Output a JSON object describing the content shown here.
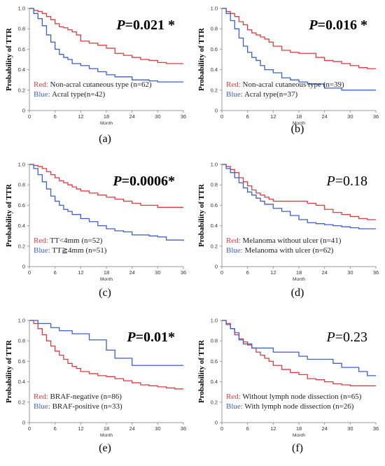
{
  "colors": {
    "red": "#e03a3e",
    "blue": "#3a5fd0"
  },
  "chart_data": [
    {
      "type": "line",
      "panel_label": "(a)",
      "p_prefix": "P",
      "p_value": "=0.021",
      "p_star": " *",
      "p_bold": true,
      "xlabel": "Month",
      "ylabel": "Probability of TTR",
      "xticks": [
        "0",
        "6",
        "12",
        "18",
        "24",
        "30",
        "36"
      ],
      "yticks": [
        "0",
        "0.2",
        "0.4",
        "0.6",
        "0.8",
        "1.0"
      ],
      "xlim": [
        0,
        36
      ],
      "ylim": [
        0,
        1.0
      ],
      "legend": [
        {
          "key": "Red:",
          "text": " Non-acral cutaneous type (n=62)"
        },
        {
          "key": "Blue:",
          "text": " Acral type(n=42)"
        }
      ],
      "series": [
        {
          "color": "red",
          "x": [
            0,
            1,
            2,
            3,
            4,
            5,
            6,
            7,
            8,
            9,
            10,
            11,
            12,
            14,
            16,
            18,
            20,
            22,
            24,
            26,
            28,
            30,
            32,
            34,
            36
          ],
          "y": [
            1,
            0.98,
            0.97,
            0.95,
            0.92,
            0.89,
            0.85,
            0.82,
            0.81,
            0.79,
            0.77,
            0.74,
            0.68,
            0.66,
            0.64,
            0.61,
            0.56,
            0.54,
            0.52,
            0.5,
            0.49,
            0.47,
            0.46,
            0.46,
            0.46
          ]
        },
        {
          "color": "blue",
          "x": [
            0,
            1,
            2,
            3,
            4,
            5,
            6,
            7,
            8,
            9,
            10,
            12,
            14,
            16,
            18,
            20,
            24,
            28,
            30,
            36
          ],
          "y": [
            1,
            0.95,
            0.9,
            0.83,
            0.74,
            0.67,
            0.6,
            0.55,
            0.52,
            0.5,
            0.46,
            0.44,
            0.41,
            0.38,
            0.35,
            0.33,
            0.3,
            0.29,
            0.28,
            0.28
          ]
        }
      ]
    },
    {
      "type": "line",
      "panel_label": "(b)",
      "p_prefix": "P",
      "p_value": "=0.016",
      "p_star": " *",
      "p_bold": true,
      "xlabel": "Month",
      "ylabel": "Probability of TTR",
      "xticks": [
        "0",
        "6",
        "12",
        "18",
        "24",
        "30",
        "36"
      ],
      "yticks": [
        "0",
        "0.2",
        "0.4",
        "0.6",
        "0.8",
        "1.0"
      ],
      "xlim": [
        0,
        36
      ],
      "ylim": [
        0,
        1.0
      ],
      "legend": [
        {
          "key": "Red:",
          "text": " Non-acral cutaneous type (n=39)"
        },
        {
          "key": "Blue:",
          "text": " Acral type(n=37)"
        }
      ],
      "series": [
        {
          "color": "red",
          "x": [
            0,
            1,
            2,
            3,
            4,
            5,
            6,
            7,
            8,
            9,
            10,
            11,
            12,
            14,
            16,
            18,
            20,
            22,
            24,
            26,
            28,
            30,
            32,
            34,
            36
          ],
          "y": [
            1,
            0.97,
            0.95,
            0.92,
            0.87,
            0.84,
            0.79,
            0.76,
            0.74,
            0.72,
            0.7,
            0.67,
            0.63,
            0.59,
            0.57,
            0.56,
            0.56,
            0.52,
            0.49,
            0.48,
            0.46,
            0.44,
            0.42,
            0.41,
            0.41
          ]
        },
        {
          "color": "blue",
          "x": [
            0,
            1,
            2,
            3,
            4,
            5,
            6,
            7,
            8,
            9,
            10,
            12,
            14,
            16,
            18,
            20,
            24,
            28,
            30,
            36
          ],
          "y": [
            1,
            0.95,
            0.88,
            0.8,
            0.71,
            0.63,
            0.57,
            0.52,
            0.49,
            0.44,
            0.4,
            0.37,
            0.32,
            0.3,
            0.28,
            0.26,
            0.22,
            0.2,
            0.2,
            0.2
          ]
        }
      ]
    },
    {
      "type": "line",
      "panel_label": "(c)",
      "p_prefix": "P",
      "p_value": "=0.0006",
      "p_star": "*",
      "p_bold": true,
      "xlabel": "Month",
      "ylabel": "Probability of TTR",
      "xticks": [
        "0",
        "6",
        "12",
        "18",
        "24",
        "30",
        "36"
      ],
      "yticks": [
        "0",
        "0.2",
        "0.4",
        "0.6",
        "0.8",
        "1.0"
      ],
      "xlim": [
        0,
        36
      ],
      "ylim": [
        0,
        1.0
      ],
      "legend": [
        {
          "key": "Red:",
          "text": " TT<4mm   (n=52)"
        },
        {
          "key": "Blue:",
          "text": " TT≧4mm  (n=51)"
        }
      ],
      "series": [
        {
          "color": "red",
          "x": [
            0,
            1,
            2,
            3,
            4,
            5,
            6,
            7,
            8,
            9,
            10,
            11,
            12,
            14,
            16,
            18,
            20,
            22,
            24,
            26,
            28,
            30,
            32,
            34,
            36
          ],
          "y": [
            1,
            0.99,
            0.98,
            0.96,
            0.93,
            0.9,
            0.87,
            0.84,
            0.82,
            0.8,
            0.78,
            0.76,
            0.74,
            0.72,
            0.7,
            0.68,
            0.66,
            0.64,
            0.62,
            0.6,
            0.6,
            0.58,
            0.58,
            0.58,
            0.58
          ]
        },
        {
          "color": "blue",
          "x": [
            0,
            1,
            2,
            3,
            4,
            5,
            6,
            7,
            8,
            9,
            10,
            12,
            14,
            16,
            18,
            20,
            22,
            24,
            28,
            30,
            32,
            36
          ],
          "y": [
            1,
            0.96,
            0.9,
            0.83,
            0.76,
            0.69,
            0.64,
            0.6,
            0.56,
            0.54,
            0.51,
            0.47,
            0.44,
            0.4,
            0.37,
            0.35,
            0.34,
            0.31,
            0.3,
            0.29,
            0.26,
            0.25
          ]
        }
      ]
    },
    {
      "type": "line",
      "panel_label": "(d)",
      "p_prefix": "P",
      "p_value": "=0.18",
      "p_star": "",
      "p_bold": false,
      "xlabel": "Month",
      "ylabel": "Probability of TTR",
      "xticks": [
        "0",
        "6",
        "12",
        "18",
        "24",
        "30",
        "36"
      ],
      "yticks": [
        "0",
        "0.2",
        "0.4",
        "0.6",
        "0.8",
        "1.0"
      ],
      "xlim": [
        0,
        36
      ],
      "ylim": [
        0,
        1.0
      ],
      "legend": [
        {
          "key": "Red:",
          "text": " Melanoma without ulcer (n=41)"
        },
        {
          "key": "Blue:",
          "text": " Melanoma with ulcer (n=62)"
        }
      ],
      "series": [
        {
          "color": "red",
          "x": [
            0,
            1,
            2,
            3,
            4,
            5,
            6,
            7,
            8,
            9,
            10,
            11,
            12,
            14,
            16,
            18,
            20,
            22,
            24,
            26,
            28,
            30,
            32,
            34,
            36
          ],
          "y": [
            1,
            0.98,
            0.95,
            0.92,
            0.87,
            0.83,
            0.79,
            0.75,
            0.72,
            0.7,
            0.68,
            0.66,
            0.64,
            0.64,
            0.64,
            0.64,
            0.62,
            0.6,
            0.56,
            0.53,
            0.51,
            0.49,
            0.47,
            0.46,
            0.46
          ]
        },
        {
          "color": "blue",
          "x": [
            0,
            1,
            2,
            3,
            4,
            5,
            6,
            7,
            8,
            9,
            10,
            12,
            14,
            16,
            18,
            20,
            22,
            24,
            26,
            28,
            30,
            32,
            34,
            36
          ],
          "y": [
            1,
            0.96,
            0.92,
            0.87,
            0.82,
            0.77,
            0.73,
            0.7,
            0.67,
            0.64,
            0.61,
            0.57,
            0.54,
            0.5,
            0.46,
            0.43,
            0.42,
            0.41,
            0.4,
            0.39,
            0.38,
            0.37,
            0.37,
            0.37
          ]
        }
      ]
    },
    {
      "type": "line",
      "panel_label": "(e)",
      "p_prefix": "P",
      "p_value": "=0.01",
      "p_star": "*",
      "p_bold": true,
      "xlabel": "Month",
      "ylabel": "Probability of TTR",
      "xticks": [
        "0",
        "6",
        "12",
        "18",
        "24",
        "30",
        "36"
      ],
      "yticks": [
        "0",
        "0.2",
        "0.4",
        "0.6",
        "0.8",
        "1.0"
      ],
      "xlim": [
        0,
        36
      ],
      "ylim": [
        0,
        1.0
      ],
      "legend": [
        {
          "key": "Red:",
          "text": " BRAF-negative   (n=86)"
        },
        {
          "key": "Blue:",
          "text": " BRAF-positive  (n=33)"
        }
      ],
      "series": [
        {
          "color": "red",
          "x": [
            0,
            1,
            2,
            3,
            4,
            5,
            6,
            7,
            8,
            9,
            10,
            11,
            12,
            14,
            16,
            18,
            20,
            22,
            24,
            26,
            28,
            30,
            32,
            34,
            36
          ],
          "y": [
            1,
            0.97,
            0.92,
            0.86,
            0.8,
            0.75,
            0.7,
            0.66,
            0.62,
            0.58,
            0.55,
            0.53,
            0.5,
            0.48,
            0.46,
            0.45,
            0.43,
            0.41,
            0.39,
            0.37,
            0.36,
            0.35,
            0.34,
            0.33,
            0.33
          ]
        },
        {
          "color": "blue",
          "x": [
            0,
            1,
            2,
            3,
            4,
            5,
            6,
            7,
            8,
            9,
            10,
            12,
            14,
            16,
            18,
            20,
            22,
            24,
            28,
            32,
            36
          ],
          "y": [
            1,
            1,
            0.97,
            0.97,
            0.97,
            0.93,
            0.93,
            0.9,
            0.9,
            0.9,
            0.87,
            0.87,
            0.81,
            0.81,
            0.71,
            0.63,
            0.63,
            0.56,
            0.56,
            0.56,
            0.56
          ]
        }
      ]
    },
    {
      "type": "line",
      "panel_label": "(f)",
      "p_prefix": "P",
      "p_value": "=0.23",
      "p_star": "",
      "p_bold": false,
      "xlabel": "Month",
      "ylabel": "Probability of TTR",
      "xticks": [
        "0",
        "6",
        "12",
        "18",
        "24",
        "30",
        "36"
      ],
      "yticks": [
        "0",
        "0.2",
        "0.4",
        "0.6",
        "0.8",
        "1.0"
      ],
      "xlim": [
        0,
        36
      ],
      "ylim": [
        0,
        1.0
      ],
      "legend": [
        {
          "key": "Red:",
          "text": " Without lymph node dissection  (n=65)"
        },
        {
          "key": "Blue:",
          "text": " With lymph node dissection (n=26)"
        }
      ],
      "series": [
        {
          "color": "red",
          "x": [
            0,
            1,
            2,
            3,
            4,
            5,
            6,
            7,
            8,
            9,
            10,
            11,
            12,
            14,
            16,
            18,
            20,
            22,
            24,
            26,
            28,
            30,
            32,
            34,
            36
          ],
          "y": [
            1,
            0.97,
            0.92,
            0.86,
            0.82,
            0.79,
            0.76,
            0.73,
            0.69,
            0.66,
            0.63,
            0.6,
            0.56,
            0.52,
            0.49,
            0.47,
            0.43,
            0.42,
            0.4,
            0.38,
            0.37,
            0.36,
            0.36,
            0.36,
            0.36
          ]
        },
        {
          "color": "blue",
          "x": [
            0,
            1,
            2,
            3,
            4,
            5,
            6,
            7,
            8,
            9,
            10,
            12,
            14,
            16,
            18,
            20,
            22,
            24,
            26,
            28,
            30,
            32,
            34,
            36
          ],
          "y": [
            1,
            0.96,
            0.92,
            0.88,
            0.81,
            0.77,
            0.77,
            0.73,
            0.73,
            0.73,
            0.73,
            0.69,
            0.69,
            0.69,
            0.65,
            0.62,
            0.62,
            0.62,
            0.58,
            0.54,
            0.54,
            0.5,
            0.46,
            0.46
          ]
        }
      ]
    }
  ]
}
